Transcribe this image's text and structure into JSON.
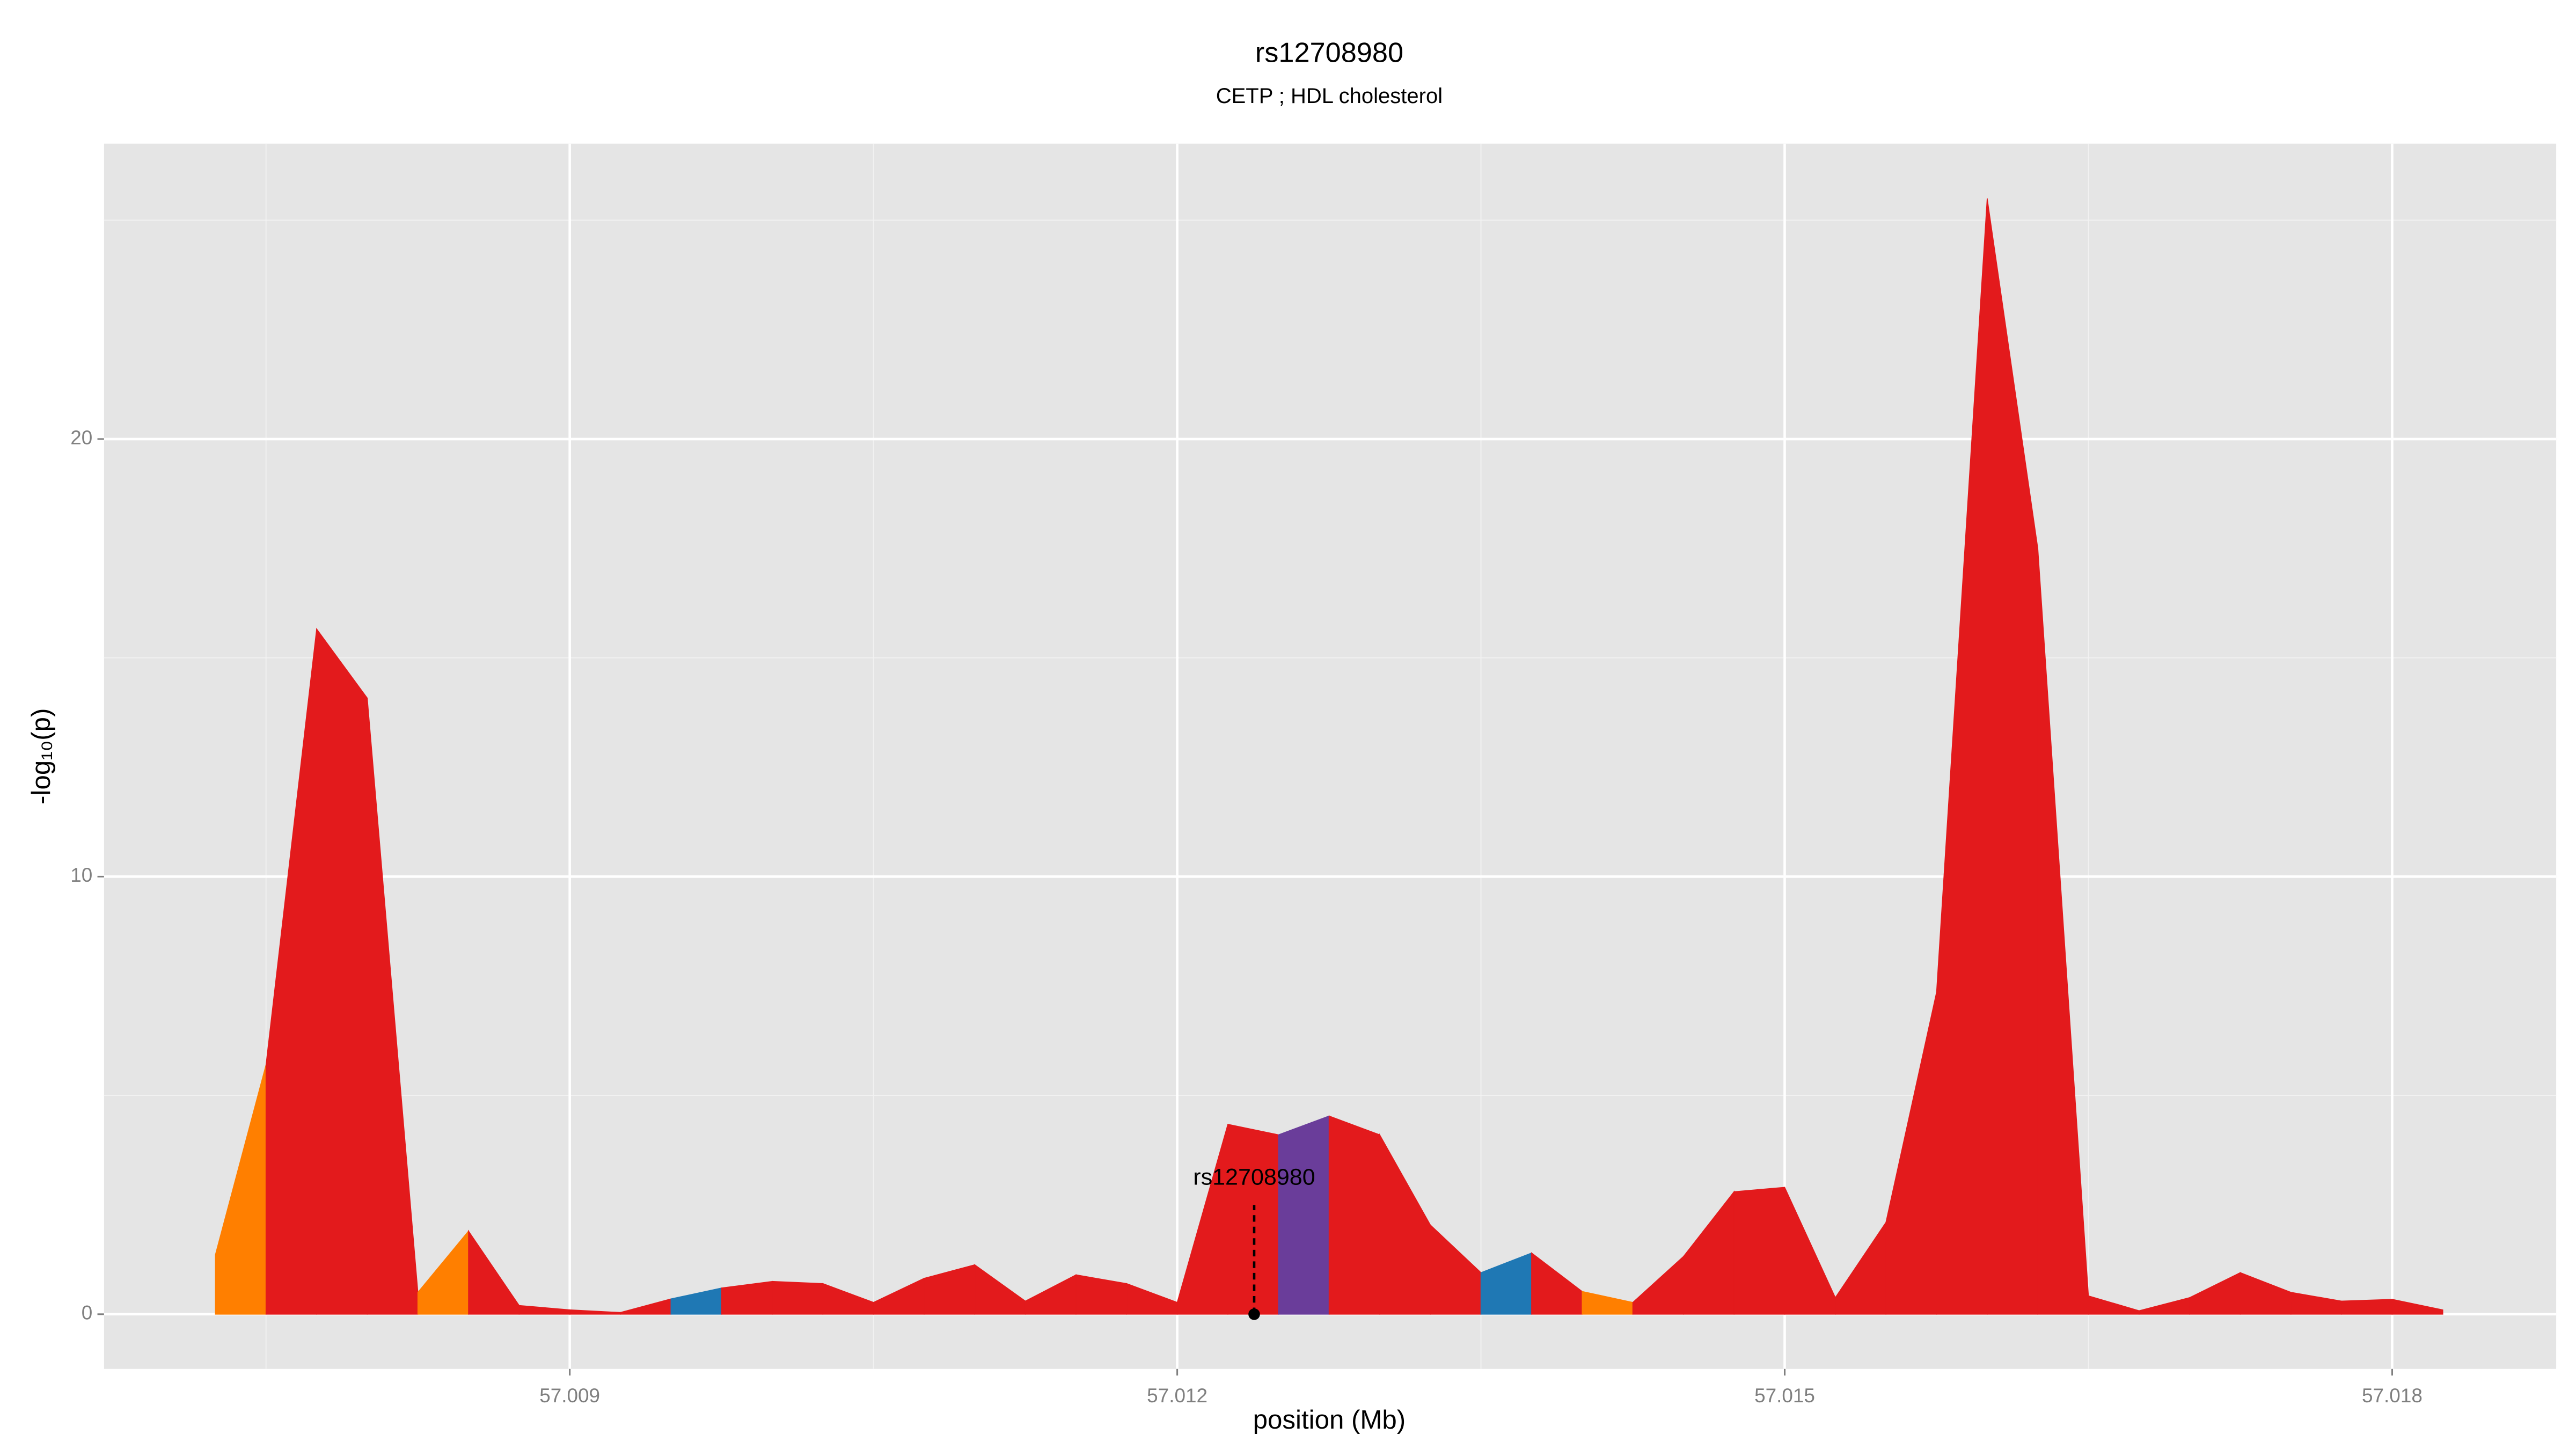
{
  "chart_data": {
    "type": "area",
    "title": "rs12708980",
    "subtitle": "CETP ; HDL cholesterol",
    "x_label": "position (Mb)",
    "y_label": "-log₁₀(p)",
    "x": [
      57.00725,
      57.0075,
      57.00775,
      57.008,
      57.00825,
      57.0085,
      57.00875,
      57.009,
      57.00925,
      57.0095,
      57.00975,
      57.01,
      57.01025,
      57.0105,
      57.01075,
      57.011,
      57.01125,
      57.0115,
      57.01175,
      57.012,
      57.01225,
      57.0125,
      57.01275,
      57.013,
      57.01325,
      57.0135,
      57.01375,
      57.014,
      57.01425,
      57.0145,
      57.01475,
      57.015,
      57.01525,
      57.0155,
      57.01575,
      57.016,
      57.01625,
      57.0165,
      57.01675,
      57.017,
      57.01725,
      57.0175,
      57.01775,
      57.018,
      57.01825
    ],
    "values": [
      1.36,
      5.7,
      15.66,
      14.08,
      0.5,
      1.9,
      0.2,
      0.1,
      0.04,
      0.35,
      0.6,
      0.75,
      0.7,
      0.27,
      0.82,
      1.13,
      0.3,
      0.9,
      0.7,
      0.27,
      4.34,
      4.1,
      4.53,
      4.1,
      2.04,
      0.95,
      1.4,
      0.52,
      0.27,
      1.32,
      2.8,
      2.9,
      0.38,
      2.1,
      7.36,
      25.5,
      17.5,
      0.42,
      0.08,
      0.38,
      0.95,
      0.5,
      0.3,
      0.34,
      0.1
    ],
    "segment_colors": [
      "#ff7f00",
      "#e31a1c",
      "#e31a1c",
      "#e31a1c",
      "#ff7f00",
      "#e31a1c",
      "#e31a1c",
      "#e31a1c",
      "#e31a1c",
      "#1f78b4",
      "#e31a1c",
      "#e31a1c",
      "#e31a1c",
      "#e31a1c",
      "#e31a1c",
      "#e31a1c",
      "#e31a1c",
      "#e31a1c",
      "#e31a1c",
      "#e31a1c",
      "#e31a1c",
      "#6a3d9a",
      "#e31a1c",
      "#e31a1c",
      "#e31a1c",
      "#1f78b4",
      "#e31a1c",
      "#ff7f00",
      "#e31a1c",
      "#e31a1c",
      "#e31a1c",
      "#e31a1c",
      "#e31a1c",
      "#e31a1c",
      "#e31a1c",
      "#e31a1c",
      "#e31a1c",
      "#e31a1c",
      "#e31a1c",
      "#e31a1c",
      "#e31a1c",
      "#e31a1c",
      "#e31a1c",
      "#e31a1c"
    ],
    "xlim": [
      57.0067,
      57.01881
    ],
    "ylim": [
      -1.25,
      26.75
    ],
    "xticks": [
      57.009,
      57.012,
      57.015,
      57.018
    ],
    "yticks": [
      0,
      10,
      20
    ],
    "x_minor_ticks": [
      57.0075,
      57.0105,
      57.0135,
      57.0165
    ],
    "y_minor_ticks": [
      5,
      15,
      25
    ],
    "grid": true,
    "annotation": {
      "text": "rs12708980",
      "x": 57.01238,
      "y": 3.1
    }
  }
}
